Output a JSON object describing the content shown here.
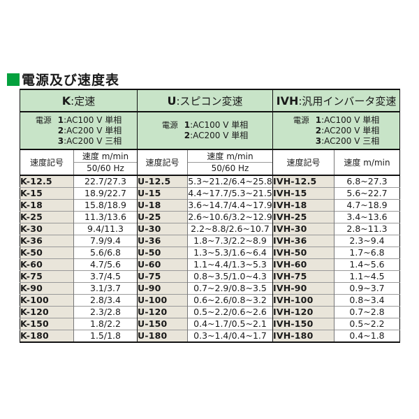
{
  "title": "電源及び速度表",
  "colors": {
    "title_square_green": "#04a13e",
    "header_green": "#c8e4c8",
    "code_beige": "#e9e5da"
  },
  "sections": {
    "k": {
      "code": "K",
      "label": ":定速",
      "power": [
        {
          "prefix": "電源",
          "num": "1",
          "rest": ":AC100 V 単相"
        },
        {
          "prefix": "",
          "num": "2",
          "rest": ":AC200 V 単相"
        },
        {
          "prefix": "",
          "num": "3",
          "rest": ":AC200 V 三相"
        }
      ]
    },
    "u": {
      "code": "U",
      "label": ":スピコン変速",
      "power": [
        {
          "prefix": "電源",
          "num": "1",
          "rest": ":AC100 V 単相"
        },
        {
          "prefix": "",
          "num": "2",
          "rest": ":AC200 V 単相"
        }
      ]
    },
    "ivh": {
      "code": "IVH",
      "label": ":汎用インバータ変速",
      "power": [
        {
          "prefix": "電源",
          "num": "1",
          "rest": ":AC100 V 単相"
        },
        {
          "prefix": "",
          "num": "2",
          "rest": ":AC200 V 単相"
        },
        {
          "prefix": "",
          "num": "3",
          "rest": ":AC200 V 三相"
        }
      ]
    }
  },
  "subheader": {
    "speed_code": "速度記号",
    "speed_unit": "速度 m/min",
    "hz": "50/60 Hz"
  },
  "rows": [
    [
      "K-12.5",
      "22.7/27.3",
      "U-12.5",
      "5.3~21.2/6.4~25.8",
      "IVH-12.5",
      "6.8~27.3"
    ],
    [
      "K-15",
      "18.9/22.7",
      "U-15",
      "4.4~17.7/5.3~21.5",
      "IVH-15",
      "5.6~22.7"
    ],
    [
      "K-18",
      "15.8/18.9",
      "U-18",
      "3.6~14.7/4.4~17.9",
      "IVH-18",
      "4.7~18.9"
    ],
    [
      "K-25",
      "11.3/13.6",
      "U-25",
      "2.6~10.6/3.2~12.9",
      "IVH-25",
      "3.4~13.6"
    ],
    [
      "K-30",
      "9.4/11.3",
      "U-30",
      "2.2~8.8/2.6~10.7",
      "IVH-30",
      "2.8~11.3"
    ],
    [
      "K-36",
      "7.9/9.4",
      "U-36",
      "1.8~7.3/2.2~8.9",
      "IVH-36",
      "2.3~9.4"
    ],
    [
      "K-50",
      "5.6/6.8",
      "U-50",
      "1.3~5.3/1.6~6.4",
      "IVH-50",
      "1.7~6.8"
    ],
    [
      "K-60",
      "4.7/5.6",
      "U-60",
      "1.1~4.4/1.3~5.3",
      "IVH-60",
      "1.4~5.6"
    ],
    [
      "K-75",
      "3.7/4.5",
      "U-75",
      "0.8~3.5/1.0~4.3",
      "IVH-75",
      "1.1~4.5"
    ],
    [
      "K-90",
      "3.1/3.7",
      "U-90",
      "0.7~2.9/0.8~3.5",
      "IVH-90",
      "0.9~3.7"
    ],
    [
      "K-100",
      "2.8/3.4",
      "U-100",
      "0.6~2.6/0.8~3.2",
      "IVH-100",
      "0.8~3.4"
    ],
    [
      "K-120",
      "2.3/2.8",
      "U-120",
      "0.5~2.2/0.6~2.6",
      "IVH-120",
      "0.7~2.8"
    ],
    [
      "K-150",
      "1.8/2.2",
      "U-150",
      "0.4~1.7/0.5~2.1",
      "IVH-150",
      "0.5~2.2"
    ],
    [
      "K-180",
      "1.5/1.8",
      "U-180",
      "0.3~1.4/0.4~1.7",
      "IVH-180",
      "0.4~1.8"
    ]
  ]
}
